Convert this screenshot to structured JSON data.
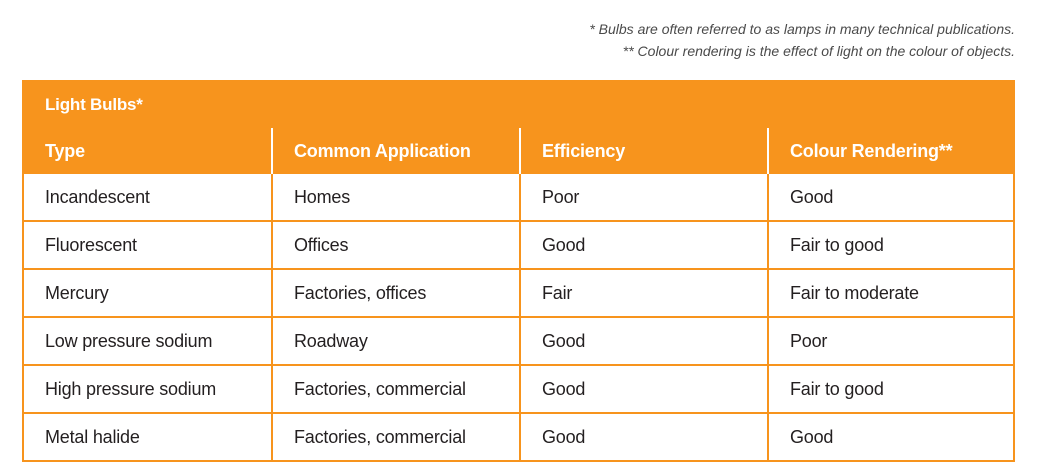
{
  "footnotes": {
    "note1": "* Bulbs are often referred to as lamps in many technical publications.",
    "note2": "** Colour rendering is the effect of light on the colour of objects."
  },
  "table": {
    "title": "Light Bulbs*",
    "headers": [
      "Type",
      "Common Application",
      "Efficiency",
      "Colour Rendering**"
    ],
    "rows": [
      [
        "Incandescent",
        "Homes",
        "Poor",
        "Good"
      ],
      [
        "Fluorescent",
        "Offices",
        "Good",
        "Fair to good"
      ],
      [
        "Mercury",
        "Factories, offices",
        "Fair",
        "Fair to moderate"
      ],
      [
        "Low pressure sodium",
        "Roadway",
        "Good",
        "Poor"
      ],
      [
        "High pressure sodium",
        "Factories, commercial",
        "Good",
        "Fair to good"
      ],
      [
        "Metal halide",
        "Factories, commercial",
        "Good",
        "Good"
      ]
    ]
  },
  "colors": {
    "accent": "#f7941d",
    "text": "#231f20",
    "footnote": "#4a4a4a"
  }
}
